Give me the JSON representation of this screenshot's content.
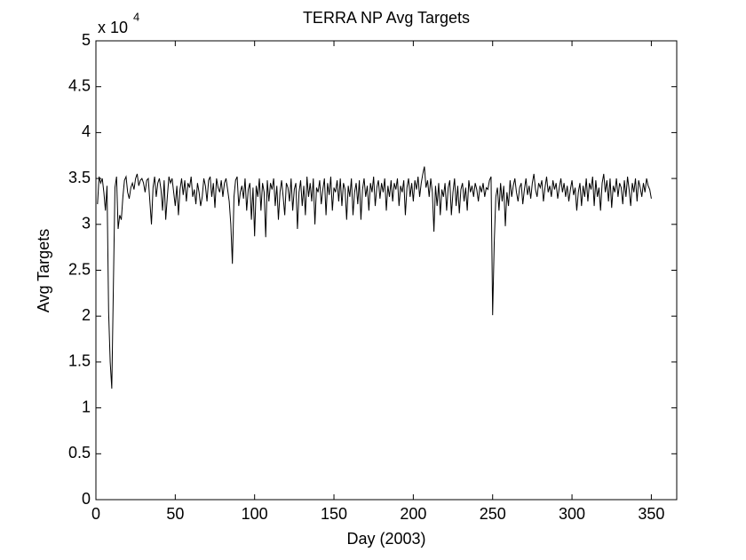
{
  "chart_data": {
    "type": "line",
    "title": "TERRA NP Avg Targets",
    "x_label": "Day (2003)",
    "y_label": "Avg Targets",
    "y_multiplier": "x 10",
    "y_multiplier_exponent": 4,
    "xlim": [
      0,
      366
    ],
    "ylim": [
      0,
      5
    ],
    "xticks": [
      0,
      50,
      100,
      150,
      200,
      250,
      300,
      350
    ],
    "yticks": [
      0,
      0.5,
      1,
      1.5,
      2,
      2.5,
      3,
      3.5,
      4,
      4.5,
      5
    ],
    "grid": false,
    "x": [
      1,
      2,
      3,
      4,
      5,
      6,
      7,
      8,
      9,
      10,
      11,
      12,
      13,
      14,
      15,
      16,
      17,
      18,
      19,
      20,
      21,
      22,
      23,
      24,
      25,
      26,
      27,
      28,
      29,
      30,
      31,
      32,
      33,
      34,
      35,
      36,
      37,
      38,
      39,
      40,
      41,
      42,
      43,
      44,
      45,
      46,
      47,
      48,
      49,
      50,
      51,
      52,
      53,
      54,
      55,
      56,
      57,
      58,
      59,
      60,
      61,
      62,
      63,
      64,
      65,
      66,
      67,
      68,
      69,
      70,
      71,
      72,
      73,
      74,
      75,
      76,
      77,
      78,
      79,
      80,
      81,
      82,
      83,
      84,
      85,
      86,
      87,
      88,
      89,
      90,
      91,
      92,
      93,
      94,
      95,
      96,
      97,
      98,
      99,
      100,
      101,
      102,
      103,
      104,
      105,
      106,
      107,
      108,
      109,
      110,
      111,
      112,
      113,
      114,
      115,
      116,
      117,
      118,
      119,
      120,
      121,
      122,
      123,
      124,
      125,
      126,
      127,
      128,
      129,
      130,
      131,
      132,
      133,
      134,
      135,
      136,
      137,
      138,
      139,
      140,
      141,
      142,
      143,
      144,
      145,
      146,
      147,
      148,
      149,
      150,
      151,
      152,
      153,
      154,
      155,
      156,
      157,
      158,
      159,
      160,
      161,
      162,
      163,
      164,
      165,
      166,
      167,
      168,
      169,
      170,
      171,
      172,
      173,
      174,
      175,
      176,
      177,
      178,
      179,
      180,
      181,
      182,
      183,
      184,
      185,
      186,
      187,
      188,
      189,
      190,
      191,
      192,
      193,
      194,
      195,
      196,
      197,
      198,
      199,
      200,
      201,
      202,
      203,
      204,
      205,
      206,
      207,
      208,
      209,
      210,
      211,
      212,
      213,
      214,
      215,
      216,
      217,
      218,
      219,
      220,
      221,
      222,
      223,
      224,
      225,
      226,
      227,
      228,
      229,
      230,
      231,
      232,
      233,
      234,
      235,
      236,
      237,
      238,
      239,
      240,
      241,
      242,
      243,
      244,
      245,
      246,
      247,
      248,
      249,
      250,
      251,
      252,
      253,
      254,
      255,
      256,
      257,
      258,
      259,
      260,
      261,
      262,
      263,
      264,
      265,
      266,
      267,
      268,
      269,
      270,
      271,
      272,
      273,
      274,
      275,
      276,
      277,
      278,
      279,
      280,
      281,
      282,
      283,
      284,
      285,
      286,
      287,
      288,
      289,
      290,
      291,
      292,
      293,
      294,
      295,
      296,
      297,
      298,
      299,
      300,
      301,
      302,
      303,
      304,
      305,
      306,
      307,
      308,
      309,
      310,
      311,
      312,
      313,
      314,
      315,
      316,
      317,
      318,
      319,
      320,
      321,
      322,
      323,
      324,
      325,
      326,
      327,
      328,
      329,
      330,
      331,
      332,
      333,
      334,
      335,
      336,
      337,
      338,
      339,
      340,
      341,
      342,
      343,
      344,
      345,
      346,
      347,
      348,
      349,
      350
    ],
    "series": [
      {
        "color": "#000000",
        "values": [
          3.22,
          3.52,
          3.45,
          3.5,
          3.35,
          3.15,
          3.42,
          2.05,
          1.5,
          1.21,
          2.32,
          3.4,
          3.52,
          2.95,
          3.1,
          3.05,
          3.3,
          3.48,
          3.52,
          3.35,
          3.28,
          3.4,
          3.45,
          3.38,
          3.5,
          3.55,
          3.42,
          3.48,
          3.5,
          3.45,
          3.35,
          3.48,
          3.5,
          3.25,
          3.0,
          3.4,
          3.52,
          3.3,
          3.45,
          3.5,
          3.38,
          3.15,
          3.48,
          3.05,
          3.3,
          3.52,
          3.45,
          3.5,
          3.35,
          3.2,
          3.42,
          3.1,
          3.38,
          3.5,
          3.32,
          3.48,
          3.25,
          3.45,
          3.4,
          3.52,
          3.3,
          3.38,
          3.22,
          3.45,
          3.35,
          3.2,
          3.3,
          3.5,
          3.42,
          3.25,
          3.48,
          3.52,
          3.3,
          3.45,
          3.18,
          3.5,
          3.4,
          3.35,
          3.48,
          3.3,
          3.45,
          3.5,
          3.38,
          3.25,
          3.0,
          2.57,
          3.3,
          3.48,
          3.52,
          3.2,
          3.35,
          3.42,
          3.28,
          3.5,
          3.15,
          3.38,
          3.45,
          3.05,
          3.4,
          2.87,
          3.42,
          3.3,
          3.5,
          3.15,
          3.45,
          3.35,
          2.86,
          3.48,
          3.25,
          3.45,
          3.38,
          3.5,
          3.2,
          3.42,
          3.05,
          3.35,
          3.48,
          3.3,
          3.1,
          3.45,
          3.4,
          3.25,
          3.5,
          3.15,
          3.38,
          3.45,
          2.95,
          3.35,
          3.48,
          3.2,
          3.42,
          3.1,
          3.52,
          3.3,
          3.45,
          3.25,
          3.5,
          3.0,
          3.4,
          3.35,
          3.48,
          3.22,
          3.38,
          3.5,
          3.1,
          3.45,
          3.32,
          3.52,
          3.15,
          3.4,
          3.35,
          3.48,
          3.25,
          3.5,
          3.2,
          3.45,
          3.38,
          3.05,
          3.42,
          3.3,
          3.5,
          3.1,
          3.35,
          3.45,
          3.22,
          3.48,
          3.05,
          3.38,
          3.5,
          3.3,
          3.42,
          3.15,
          3.45,
          3.35,
          3.52,
          3.2,
          3.4,
          3.48,
          3.28,
          3.45,
          3.35,
          3.5,
          3.15,
          3.42,
          3.3,
          3.48,
          3.25,
          3.45,
          3.38,
          3.5,
          3.2,
          3.42,
          3.35,
          3.48,
          3.1,
          3.4,
          3.5,
          3.3,
          3.45,
          3.25,
          3.48,
          3.38,
          3.52,
          3.3,
          3.45,
          3.55,
          3.63,
          3.4,
          3.48,
          3.3,
          3.5,
          3.35,
          2.92,
          3.42,
          3.2,
          3.45,
          3.1,
          3.38,
          3.3,
          3.45,
          3.15,
          3.4,
          3.48,
          3.1,
          3.35,
          3.5,
          3.2,
          3.42,
          3.12,
          3.38,
          3.45,
          3.25,
          3.4,
          3.15,
          3.48,
          3.35,
          3.42,
          3.3,
          3.45,
          3.38,
          3.25,
          3.42,
          3.35,
          3.45,
          3.3,
          3.4,
          3.38,
          3.48,
          3.52,
          2.01,
          2.8,
          3.3,
          3.4,
          3.15,
          3.45,
          3.25,
          3.42,
          2.98,
          3.35,
          3.2,
          3.48,
          3.3,
          3.42,
          3.5,
          3.35,
          3.25,
          3.4,
          3.45,
          3.22,
          3.38,
          3.5,
          3.32,
          3.42,
          3.28,
          3.45,
          3.55,
          3.38,
          3.3,
          3.45,
          3.4,
          3.48,
          3.25,
          3.4,
          3.52,
          3.35,
          3.42,
          3.3,
          3.48,
          3.38,
          3.45,
          3.28,
          3.4,
          3.5,
          3.35,
          3.45,
          3.3,
          3.42,
          3.25,
          3.38,
          3.48,
          3.32,
          3.4,
          3.15,
          3.35,
          3.45,
          3.2,
          3.42,
          3.3,
          3.5,
          3.25,
          3.45,
          3.38,
          3.52,
          3.2,
          3.48,
          3.3,
          3.4,
          3.15,
          3.45,
          3.55,
          3.35,
          3.48,
          3.25,
          3.5,
          3.18,
          3.42,
          3.35,
          3.5,
          3.3,
          3.45,
          3.4,
          3.22,
          3.48,
          3.3,
          3.52,
          3.38,
          3.2,
          3.45,
          3.35,
          3.5,
          3.25,
          3.48,
          3.4,
          3.3,
          3.45,
          3.35,
          3.5,
          3.42,
          3.38,
          3.28
        ]
      }
    ]
  }
}
